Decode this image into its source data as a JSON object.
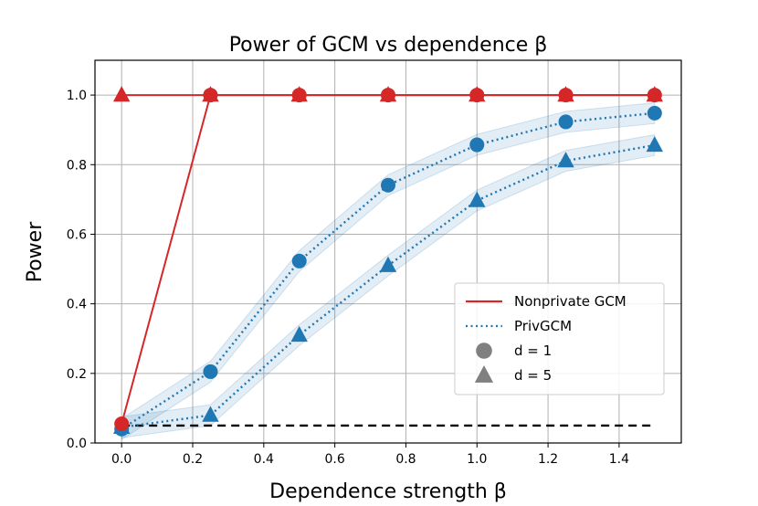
{
  "chart_data": {
    "type": "line",
    "title": "Power of GCM vs dependence β",
    "xlabel": "Dependence strength β",
    "ylabel": "Power",
    "xlim": [
      -0.075,
      1.575
    ],
    "ylim": [
      0.0,
      1.1
    ],
    "xticks": [
      0.0,
      0.2,
      0.4,
      0.6,
      0.8,
      1.0,
      1.2,
      1.4
    ],
    "xtick_labels": [
      "0.0",
      "0.2",
      "0.4",
      "0.6",
      "0.8",
      "1.0",
      "1.2",
      "1.4"
    ],
    "yticks": [
      0.0,
      0.2,
      0.4,
      0.6,
      0.8,
      1.0
    ],
    "ytick_labels": [
      "0.0",
      "0.2",
      "0.4",
      "0.6",
      "0.8",
      "1.0"
    ],
    "grid": true,
    "x": [
      0.0,
      0.25,
      0.5,
      0.75,
      1.0,
      1.25,
      1.5
    ],
    "reference_line": {
      "y": 0.05,
      "x_range": [
        0.0,
        1.5
      ],
      "style": "dashed",
      "color": "#000000"
    },
    "series": [
      {
        "name": "Nonprivate GCM, d = 1",
        "method": "nonprivate",
        "marker": "circle",
        "color": "#d62728",
        "style": "solid",
        "values": [
          0.055,
          1.0,
          1.0,
          1.0,
          1.0,
          1.0,
          1.0
        ]
      },
      {
        "name": "Nonprivate GCM, d = 5",
        "method": "nonprivate",
        "marker": "triangle",
        "color": "#d62728",
        "style": "solid",
        "values": [
          1.0,
          1.0,
          1.0,
          1.0,
          1.0,
          1.0,
          1.0
        ]
      },
      {
        "name": "PrivGCM, d = 1",
        "method": "private",
        "marker": "circle",
        "color": "#1f77b4",
        "style": "dotted",
        "values": [
          0.04,
          0.205,
          0.523,
          0.741,
          0.857,
          0.923,
          0.948
        ],
        "band": 0.03
      },
      {
        "name": "PrivGCM, d = 5",
        "method": "private",
        "marker": "triangle",
        "color": "#1f77b4",
        "style": "dotted",
        "values": [
          0.045,
          0.08,
          0.31,
          0.51,
          0.697,
          0.811,
          0.856
        ],
        "band": 0.03
      }
    ],
    "legend": {
      "position": "lower-right",
      "entries": [
        {
          "label": "Nonprivate GCM",
          "kind": "line",
          "color": "#d62728",
          "style": "solid"
        },
        {
          "label": "PrivGCM",
          "kind": "line",
          "color": "#1f77b4",
          "style": "dotted"
        },
        {
          "label": "d = 1",
          "kind": "marker",
          "marker": "circle",
          "color": "#808080"
        },
        {
          "label": "d = 5",
          "kind": "marker",
          "marker": "triangle",
          "color": "#808080"
        }
      ]
    }
  }
}
